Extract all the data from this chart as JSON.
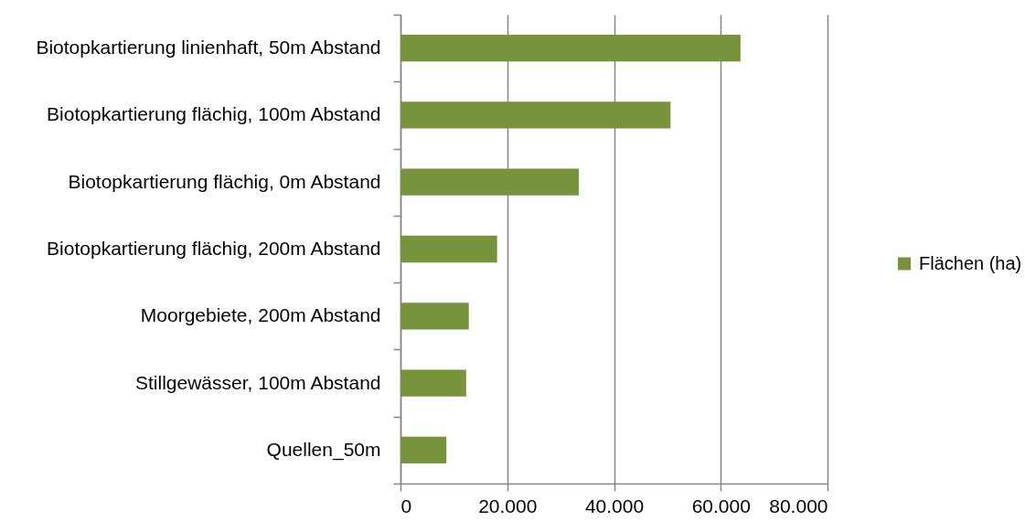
{
  "chart_data": {
    "type": "bar",
    "orientation": "horizontal",
    "categories": [
      "Biotopkartierung linienhaft, 50m Abstand",
      "Biotopkartierung flächig, 100m Abstand",
      "Biotopkartierung flächig, 0m Abstand",
      "Biotopkartierung flächig, 200m Abstand",
      "Moorgebiete, 200m Abstand",
      "Stillgewässer, 100m Abstand",
      "Quellen_50m"
    ],
    "series": [
      {
        "name": "Flächen (ha)",
        "color": "#77933c",
        "values": [
          63700,
          50600,
          33400,
          18100,
          12800,
          12300,
          8600
        ]
      }
    ],
    "xlim": [
      0,
      80000
    ],
    "xticks": [
      0,
      {
        "value": 20000,
        "label": "20.000"
      },
      {
        "value": 40000,
        "label": "40.000"
      },
      {
        "value": 60000,
        "label": "60.000"
      },
      {
        "value": 80000,
        "label": "80.000"
      }
    ],
    "grid": "x",
    "legend": "right"
  }
}
